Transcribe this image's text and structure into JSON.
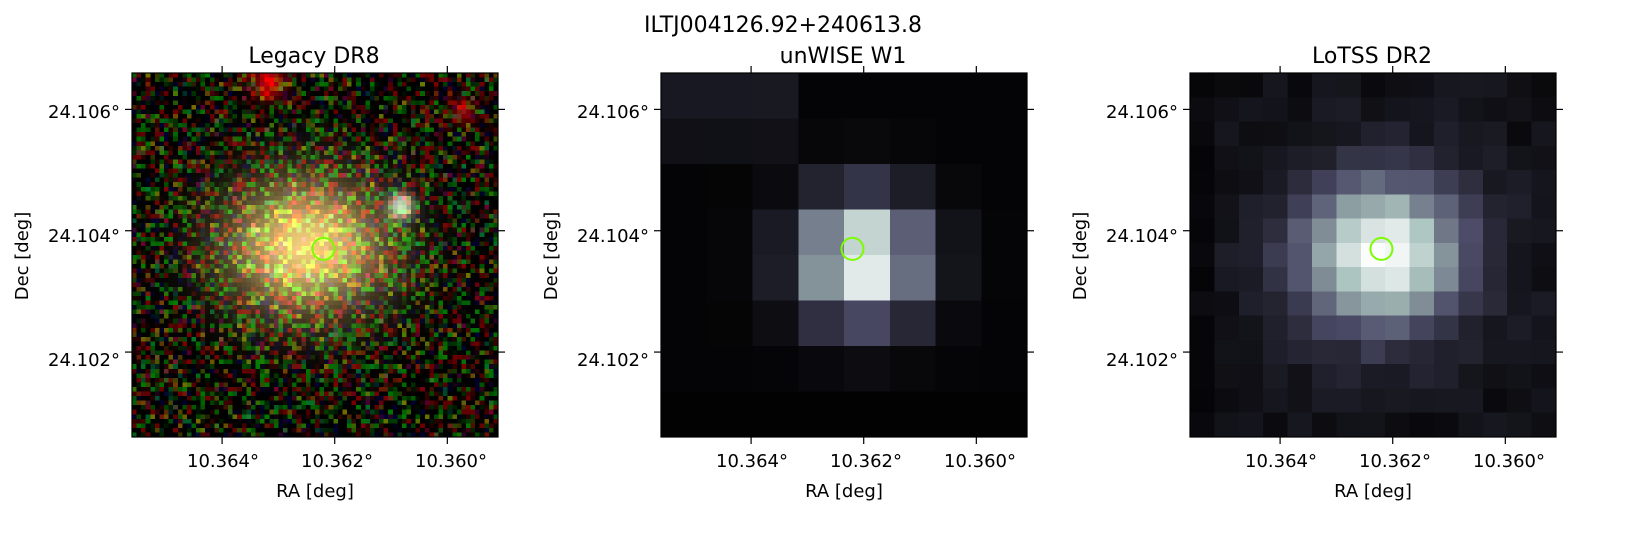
{
  "figure": {
    "title": "ILTJ004126.92+240613.8"
  },
  "panels": [
    {
      "id": "legacy",
      "title": "Legacy DR8",
      "xlabel": "RA [deg]",
      "ylabel": "Dec [deg]",
      "xticks": [
        "10.364°",
        "10.362°",
        "10.360°"
      ],
      "yticks": [
        "24.106°",
        "24.104°",
        "24.102°"
      ],
      "image_style": "optical-rgb"
    },
    {
      "id": "unwise",
      "title": "unWISE W1",
      "xlabel": "RA [deg]",
      "ylabel": "Dec [deg]",
      "xticks": [
        "10.364°",
        "10.362°",
        "10.360°"
      ],
      "yticks": [
        "24.106°",
        "24.104°",
        "24.102°"
      ],
      "image_style": "bone-coarse"
    },
    {
      "id": "lotss",
      "title": "LoTSS DR2",
      "xlabel": "RA [deg]",
      "ylabel": "Dec [deg]",
      "xticks": [
        "10.364°",
        "10.362°",
        "10.360°"
      ],
      "yticks": [
        "24.106°",
        "24.104°",
        "24.102°"
      ],
      "image_style": "bone-fine"
    }
  ],
  "marker": {
    "shape": "circle",
    "color": "#7cfc00"
  },
  "ticks": {
    "ra": [
      10.364,
      10.362,
      10.36
    ],
    "dec": [
      24.106,
      24.104,
      24.102
    ]
  },
  "axes": {
    "ra_range": [
      10.3656,
      10.3591
    ],
    "dec_range": [
      24.1066,
      24.1006
    ]
  },
  "source": {
    "ra": 10.3622,
    "dec": 24.1037
  }
}
